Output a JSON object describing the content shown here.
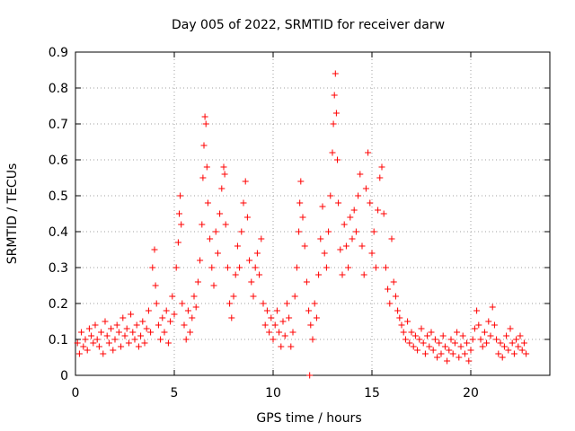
{
  "chart_data": {
    "type": "scatter",
    "title": "Day 005 of 2022, SRMTID for receiver darw",
    "xlabel": "GPS time / hours",
    "ylabel": "SRMTID / TECUs",
    "xlim": [
      0,
      24
    ],
    "ylim": [
      0,
      0.9
    ],
    "xticks": [
      0,
      5,
      10,
      15,
      20
    ],
    "yticks": [
      0,
      0.1,
      0.2,
      0.3,
      0.4,
      0.5,
      0.6,
      0.7,
      0.8,
      0.9
    ],
    "grid": true,
    "marker": "plus",
    "color": "#ff0000",
    "series": [
      {
        "name": "SRMTID",
        "points": [
          [
            0.1,
            0.09
          ],
          [
            0.2,
            0.06
          ],
          [
            0.3,
            0.12
          ],
          [
            0.4,
            0.08
          ],
          [
            0.5,
            0.1
          ],
          [
            0.6,
            0.07
          ],
          [
            0.7,
            0.13
          ],
          [
            0.8,
            0.11
          ],
          [
            0.9,
            0.09
          ],
          [
            1.0,
            0.14
          ],
          [
            1.1,
            0.1
          ],
          [
            1.2,
            0.08
          ],
          [
            1.3,
            0.12
          ],
          [
            1.4,
            0.06
          ],
          [
            1.5,
            0.15
          ],
          [
            1.6,
            0.11
          ],
          [
            1.7,
            0.09
          ],
          [
            1.8,
            0.13
          ],
          [
            1.9,
            0.07
          ],
          [
            2.0,
            0.1
          ],
          [
            2.1,
            0.14
          ],
          [
            2.2,
            0.12
          ],
          [
            2.3,
            0.08
          ],
          [
            2.4,
            0.16
          ],
          [
            2.5,
            0.11
          ],
          [
            2.6,
            0.13
          ],
          [
            2.7,
            0.09
          ],
          [
            2.8,
            0.17
          ],
          [
            2.9,
            0.12
          ],
          [
            3.0,
            0.1
          ],
          [
            3.1,
            0.14
          ],
          [
            3.2,
            0.08
          ],
          [
            3.3,
            0.11
          ],
          [
            3.4,
            0.15
          ],
          [
            3.5,
            0.09
          ],
          [
            3.6,
            0.13
          ],
          [
            3.7,
            0.18
          ],
          [
            3.8,
            0.12
          ],
          [
            3.9,
            0.3
          ],
          [
            4.0,
            0.35
          ],
          [
            4.05,
            0.25
          ],
          [
            4.1,
            0.2
          ],
          [
            4.2,
            0.14
          ],
          [
            4.3,
            0.1
          ],
          [
            4.4,
            0.16
          ],
          [
            4.5,
            0.12
          ],
          [
            4.6,
            0.18
          ],
          [
            4.7,
            0.09
          ],
          [
            4.8,
            0.15
          ],
          [
            4.9,
            0.22
          ],
          [
            5.0,
            0.17
          ],
          [
            5.1,
            0.3
          ],
          [
            5.2,
            0.37
          ],
          [
            5.25,
            0.45
          ],
          [
            5.3,
            0.5
          ],
          [
            5.35,
            0.42
          ],
          [
            5.4,
            0.2
          ],
          [
            5.5,
            0.14
          ],
          [
            5.6,
            0.1
          ],
          [
            5.7,
            0.18
          ],
          [
            5.8,
            0.12
          ],
          [
            5.9,
            0.16
          ],
          [
            6.0,
            0.22
          ],
          [
            6.1,
            0.19
          ],
          [
            6.2,
            0.26
          ],
          [
            6.3,
            0.32
          ],
          [
            6.4,
            0.42
          ],
          [
            6.45,
            0.55
          ],
          [
            6.5,
            0.64
          ],
          [
            6.55,
            0.72
          ],
          [
            6.6,
            0.7
          ],
          [
            6.65,
            0.58
          ],
          [
            6.7,
            0.48
          ],
          [
            6.8,
            0.38
          ],
          [
            6.9,
            0.3
          ],
          [
            7.0,
            0.25
          ],
          [
            7.1,
            0.4
          ],
          [
            7.2,
            0.34
          ],
          [
            7.3,
            0.45
          ],
          [
            7.4,
            0.52
          ],
          [
            7.5,
            0.58
          ],
          [
            7.55,
            0.56
          ],
          [
            7.6,
            0.42
          ],
          [
            7.7,
            0.3
          ],
          [
            7.8,
            0.2
          ],
          [
            7.9,
            0.16
          ],
          [
            8.0,
            0.22
          ],
          [
            8.1,
            0.28
          ],
          [
            8.2,
            0.36
          ],
          [
            8.3,
            0.3
          ],
          [
            8.4,
            0.4
          ],
          [
            8.5,
            0.48
          ],
          [
            8.6,
            0.54
          ],
          [
            8.7,
            0.44
          ],
          [
            8.8,
            0.32
          ],
          [
            8.9,
            0.26
          ],
          [
            9.0,
            0.22
          ],
          [
            9.1,
            0.3
          ],
          [
            9.2,
            0.34
          ],
          [
            9.3,
            0.28
          ],
          [
            9.4,
            0.38
          ],
          [
            9.5,
            0.2
          ],
          [
            9.6,
            0.14
          ],
          [
            9.7,
            0.18
          ],
          [
            9.8,
            0.12
          ],
          [
            9.9,
            0.16
          ],
          [
            10.0,
            0.1
          ],
          [
            10.1,
            0.14
          ],
          [
            10.2,
            0.18
          ],
          [
            10.3,
            0.12
          ],
          [
            10.4,
            0.08
          ],
          [
            10.5,
            0.15
          ],
          [
            10.6,
            0.11
          ],
          [
            10.7,
            0.2
          ],
          [
            10.8,
            0.16
          ],
          [
            10.9,
            0.08
          ],
          [
            11.0,
            0.12
          ],
          [
            11.1,
            0.22
          ],
          [
            11.2,
            0.3
          ],
          [
            11.3,
            0.4
          ],
          [
            11.35,
            0.48
          ],
          [
            11.4,
            0.54
          ],
          [
            11.5,
            0.44
          ],
          [
            11.6,
            0.36
          ],
          [
            11.7,
            0.26
          ],
          [
            11.8,
            0.18
          ],
          [
            11.85,
            0.0
          ],
          [
            11.9,
            0.14
          ],
          [
            12.0,
            0.1
          ],
          [
            12.1,
            0.2
          ],
          [
            12.2,
            0.16
          ],
          [
            12.3,
            0.28
          ],
          [
            12.4,
            0.38
          ],
          [
            12.5,
            0.47
          ],
          [
            12.6,
            0.34
          ],
          [
            12.7,
            0.3
          ],
          [
            12.8,
            0.4
          ],
          [
            12.9,
            0.5
          ],
          [
            13.0,
            0.62
          ],
          [
            13.05,
            0.7
          ],
          [
            13.1,
            0.78
          ],
          [
            13.15,
            0.84
          ],
          [
            13.2,
            0.73
          ],
          [
            13.25,
            0.6
          ],
          [
            13.3,
            0.48
          ],
          [
            13.4,
            0.35
          ],
          [
            13.5,
            0.28
          ],
          [
            13.6,
            0.42
          ],
          [
            13.7,
            0.36
          ],
          [
            13.8,
            0.3
          ],
          [
            13.9,
            0.44
          ],
          [
            14.0,
            0.38
          ],
          [
            14.1,
            0.46
          ],
          [
            14.2,
            0.4
          ],
          [
            14.3,
            0.5
          ],
          [
            14.4,
            0.56
          ],
          [
            14.5,
            0.36
          ],
          [
            14.6,
            0.28
          ],
          [
            14.7,
            0.52
          ],
          [
            14.8,
            0.62
          ],
          [
            14.9,
            0.48
          ],
          [
            15.0,
            0.34
          ],
          [
            15.1,
            0.4
          ],
          [
            15.2,
            0.3
          ],
          [
            15.3,
            0.46
          ],
          [
            15.4,
            0.55
          ],
          [
            15.5,
            0.58
          ],
          [
            15.6,
            0.45
          ],
          [
            15.7,
            0.3
          ],
          [
            15.8,
            0.24
          ],
          [
            15.9,
            0.2
          ],
          [
            16.0,
            0.38
          ],
          [
            16.1,
            0.26
          ],
          [
            16.2,
            0.22
          ],
          [
            16.3,
            0.18
          ],
          [
            16.4,
            0.16
          ],
          [
            16.5,
            0.14
          ],
          [
            16.6,
            0.12
          ],
          [
            16.7,
            0.1
          ],
          [
            16.8,
            0.15
          ],
          [
            16.9,
            0.09
          ],
          [
            17.0,
            0.12
          ],
          [
            17.1,
            0.08
          ],
          [
            17.2,
            0.11
          ],
          [
            17.3,
            0.07
          ],
          [
            17.4,
            0.1
          ],
          [
            17.5,
            0.13
          ],
          [
            17.6,
            0.09
          ],
          [
            17.7,
            0.06
          ],
          [
            17.8,
            0.11
          ],
          [
            17.9,
            0.08
          ],
          [
            18.0,
            0.12
          ],
          [
            18.1,
            0.07
          ],
          [
            18.2,
            0.1
          ],
          [
            18.3,
            0.05
          ],
          [
            18.4,
            0.09
          ],
          [
            18.5,
            0.06
          ],
          [
            18.6,
            0.11
          ],
          [
            18.7,
            0.08
          ],
          [
            18.8,
            0.04
          ],
          [
            18.9,
            0.07
          ],
          [
            19.0,
            0.1
          ],
          [
            19.1,
            0.06
          ],
          [
            19.2,
            0.09
          ],
          [
            19.3,
            0.12
          ],
          [
            19.4,
            0.05
          ],
          [
            19.5,
            0.08
          ],
          [
            19.6,
            0.11
          ],
          [
            19.7,
            0.06
          ],
          [
            19.8,
            0.09
          ],
          [
            19.9,
            0.04
          ],
          [
            20.0,
            0.07
          ],
          [
            20.1,
            0.1
          ],
          [
            20.2,
            0.13
          ],
          [
            20.3,
            0.18
          ],
          [
            20.4,
            0.14
          ],
          [
            20.5,
            0.1
          ],
          [
            20.6,
            0.08
          ],
          [
            20.7,
            0.12
          ],
          [
            20.8,
            0.09
          ],
          [
            20.9,
            0.15
          ],
          [
            21.0,
            0.11
          ],
          [
            21.1,
            0.19
          ],
          [
            21.2,
            0.14
          ],
          [
            21.3,
            0.1
          ],
          [
            21.4,
            0.06
          ],
          [
            21.5,
            0.09
          ],
          [
            21.6,
            0.05
          ],
          [
            21.7,
            0.08
          ],
          [
            21.8,
            0.11
          ],
          [
            21.9,
            0.07
          ],
          [
            22.0,
            0.13
          ],
          [
            22.1,
            0.09
          ],
          [
            22.2,
            0.06
          ],
          [
            22.3,
            0.1
          ],
          [
            22.4,
            0.08
          ],
          [
            22.5,
            0.11
          ],
          [
            22.6,
            0.07
          ],
          [
            22.7,
            0.09
          ],
          [
            22.8,
            0.06
          ]
        ]
      }
    ]
  }
}
